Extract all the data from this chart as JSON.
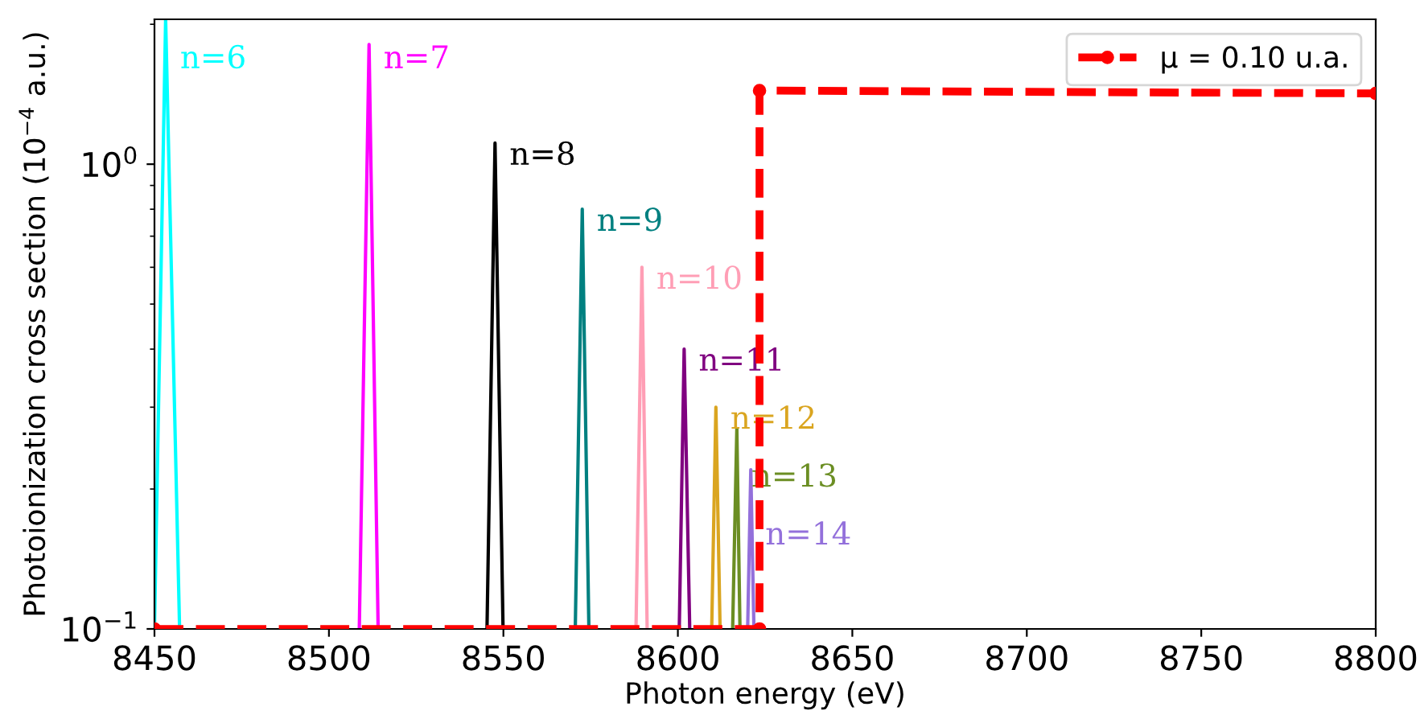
{
  "chart_data": {
    "type": "line",
    "xlabel": "Photon energy (eV)",
    "ylabel": "Photoionization cross section (10$^{−4}$ a.u.)",
    "log": "y",
    "xlim": [
      8450,
      8800
    ],
    "ylim": [
      0.1,
      2.05
    ],
    "xticks": [
      8450,
      8500,
      8550,
      8600,
      8650,
      8700,
      8750,
      8800
    ],
    "yticks": [
      {
        "value": 0.1,
        "label": "10$^{−1}$"
      },
      {
        "value": 1,
        "label": "10$^{0}$"
      }
    ],
    "grid": false,
    "legend": "top right",
    "series": [
      {
        "color": "#00ffff",
        "x": [
          8450,
          8453.2,
          8457.2
        ],
        "values": [
          0.1,
          2.05,
          0.1
        ]
      },
      {
        "color": "#ff00ff",
        "x": [
          8508.7,
          8511.5,
          8514.1
        ],
        "values": [
          0.1,
          1.81,
          0.1
        ]
      },
      {
        "color": "#000000",
        "x": [
          8545.3,
          8547.6,
          8549.9
        ],
        "values": [
          0.1,
          1.11,
          0.1
        ]
      },
      {
        "color": "#008080",
        "x": [
          8570.6,
          8572.6,
          8574.5
        ],
        "values": [
          0.1,
          0.8,
          0.1
        ]
      },
      {
        "color": "#ff9eb5",
        "x": [
          8588.0,
          8589.7,
          8591.2
        ],
        "values": [
          0.1,
          0.6,
          0.1
        ]
      },
      {
        "color": "#800080",
        "x": [
          8600.4,
          8601.8,
          8603.4
        ],
        "values": [
          0.1,
          0.4,
          0.1
        ]
      },
      {
        "color": "#daa520",
        "x": [
          8609.7,
          8610.9,
          8612.1
        ],
        "values": [
          0.1,
          0.3,
          0.1
        ]
      },
      {
        "color": "#6b8e23",
        "x": [
          8615.7,
          8616.9,
          8617.8
        ],
        "values": [
          0.1,
          0.27,
          0.1
        ]
      },
      {
        "color": "#9370db",
        "x": [
          8620.0,
          8620.9,
          8621.8
        ],
        "values": [
          0.1,
          0.22,
          0.1
        ]
      },
      {
        "name": "μ = 0.10 u.a.",
        "color": "#ff0000",
        "line_style": "dashed",
        "marker": "circle",
        "x": [
          8450,
          8623.4,
          8623.4,
          8800
        ],
        "values": [
          0.1,
          0.1,
          1.44,
          1.42
        ]
      }
    ],
    "annotations": [
      {
        "text": "n=6",
        "x": 8453.2,
        "y": 2.05
      },
      {
        "text": "n=7",
        "x": 8511.5,
        "y": 1.81
      },
      {
        "text": "n=8",
        "x": 8547.6,
        "y": 1.11
      },
      {
        "text": "n=9",
        "x": 8572.6,
        "y": 0.8
      },
      {
        "text": "n=10",
        "x": 8589.7,
        "y": 0.6
      },
      {
        "text": "n=11",
        "x": 8601.8,
        "y": 0.4
      },
      {
        "text": "n=12",
        "x": 8610.9,
        "y": 0.3
      },
      {
        "text": "n=13",
        "x": 8616.9,
        "y": 0.27
      },
      {
        "text": "n=14",
        "x": 8620.9,
        "y": 0.22
      }
    ]
  }
}
